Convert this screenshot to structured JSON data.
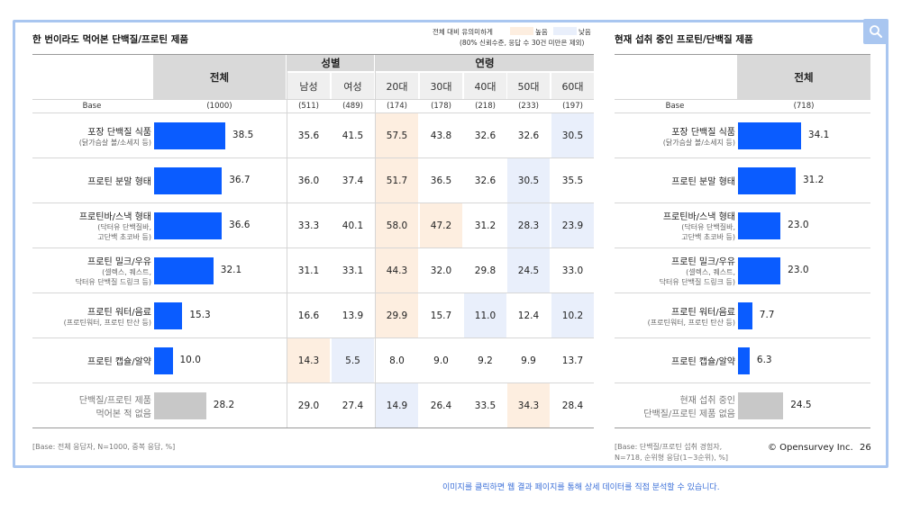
{
  "left_table": {
    "title": "한 번이라도 먹어본 단백질/프로틴 제품",
    "legend": {
      "note_line1": "전체 대비 유의미하게",
      "note_line2": "(80% 신뢰수준, 응답 수 30건 미만은 제외)",
      "high_label": "높음",
      "low_label": "낮음",
      "high_color": "#fdeee0",
      "low_color": "#e9effb"
    },
    "header": {
      "total": "전체",
      "gender_group": "성별",
      "age_group": "연령",
      "columns": [
        "남성",
        "여성",
        "20대",
        "30대",
        "40대",
        "50대",
        "60대"
      ]
    },
    "base_label": "Base",
    "base_values": [
      "(1000)",
      "(511)",
      "(489)",
      "(174)",
      "(178)",
      "(218)",
      "(233)",
      "(197)"
    ],
    "rows": [
      {
        "label": "포장 단백질 식품",
        "sub": [
          "(닭가슴살 볼/소세지 등)"
        ],
        "total": 38.5,
        "total_text": "38.5",
        "values": [
          "35.6",
          "41.5",
          "57.5",
          "43.8",
          "32.6",
          "32.6",
          "30.5"
        ],
        "flags": [
          "",
          "",
          "high",
          "",
          "",
          "",
          "low"
        ]
      },
      {
        "label": "프로틴 분말 형태",
        "sub": [],
        "total": 36.7,
        "total_text": "36.7",
        "values": [
          "36.0",
          "37.4",
          "51.7",
          "36.5",
          "32.6",
          "30.5",
          "35.5"
        ],
        "flags": [
          "",
          "",
          "high",
          "",
          "",
          "low",
          ""
        ]
      },
      {
        "label": "프로틴바/스낵 형태",
        "sub": [
          "(닥터유 단백질바,",
          "고단백 초코바 등)"
        ],
        "total": 36.6,
        "total_text": "36.6",
        "values": [
          "33.3",
          "40.1",
          "58.0",
          "47.2",
          "31.2",
          "28.3",
          "23.9"
        ],
        "flags": [
          "",
          "",
          "high",
          "high",
          "",
          "low",
          "low"
        ]
      },
      {
        "label": "프로틴 밀크/우유",
        "sub": [
          "(셀렉스, 퀘스트,",
          "닥터유 단백질 드링크 등)"
        ],
        "total": 32.1,
        "total_text": "32.1",
        "values": [
          "31.1",
          "33.1",
          "44.3",
          "32.0",
          "29.8",
          "24.5",
          "33.0"
        ],
        "flags": [
          "",
          "",
          "high",
          "",
          "",
          "low",
          ""
        ]
      },
      {
        "label": "프로틴 워터/음료",
        "sub": [
          "(프로틴워터, 프로틴 탄산 등)"
        ],
        "total": 15.3,
        "total_text": "15.3",
        "values": [
          "16.6",
          "13.9",
          "29.9",
          "15.7",
          "11.0",
          "12.4",
          "10.2"
        ],
        "flags": [
          "",
          "",
          "high",
          "",
          "low",
          "",
          "low"
        ]
      },
      {
        "label": "프로틴 캡슐/알약",
        "sub": [],
        "total": 10.0,
        "total_text": "10.0",
        "values": [
          "14.3",
          "5.5",
          "8.0",
          "9.0",
          "9.2",
          "9.9",
          "13.7"
        ],
        "flags": [
          "high",
          "low",
          "",
          "",
          "",
          "",
          ""
        ]
      },
      {
        "label": "단백질/프로틴 제품",
        "sub": [
          "먹어본 적 없음"
        ],
        "total": 28.2,
        "total_text": "28.2",
        "grey": true,
        "values": [
          "29.0",
          "27.4",
          "14.9",
          "26.4",
          "33.5",
          "34.3",
          "28.4"
        ],
        "flags": [
          "",
          "",
          "low",
          "",
          "",
          "high",
          ""
        ]
      }
    ],
    "footnote": "[Base: 전체 응답자, N=1000, 중복 응답, %]"
  },
  "right_table": {
    "title": "현재 섭취 중인 프로틴/단백질 제품",
    "header": {
      "total": "전체"
    },
    "base_label": "Base",
    "base_value": "(718)",
    "rows": [
      {
        "label": "포장 단백질 식품",
        "sub": [
          "(닭가슴살 볼/소세지 등)"
        ],
        "total": 34.1,
        "total_text": "34.1"
      },
      {
        "label": "프로틴 분말 형태",
        "sub": [],
        "total": 31.2,
        "total_text": "31.2"
      },
      {
        "label": "프로틴바/스낵 형태",
        "sub": [
          "(닥터유 단백질바,",
          "고단백 초코바 등)"
        ],
        "total": 23.0,
        "total_text": "23.0"
      },
      {
        "label": "프로틴 밀크/우유",
        "sub": [
          "(셀렉스, 퀘스트,",
          "닥터유 단백질 드링크 등)"
        ],
        "total": 23.0,
        "total_text": "23.0"
      },
      {
        "label": "프로틴 워터/음료",
        "sub": [
          "(프로틴워터, 프로틴 탄산 등)"
        ],
        "total": 7.7,
        "total_text": "7.7"
      },
      {
        "label": "프로틴 캡슐/알약",
        "sub": [],
        "total": 6.3,
        "total_text": "6.3"
      },
      {
        "label": "현재 섭취 중인",
        "sub": [
          "단백질/프로틴 제품 없음"
        ],
        "total": 24.5,
        "total_text": "24.5",
        "grey": true
      }
    ],
    "footnote_line1": "[Base: 단백질/프로틴 섭취 경험자,",
    "footnote_line2": "N=718, 순위형 응답(1~3순위), %]"
  },
  "brand": "© Opensurvey Inc.",
  "page_number": "26",
  "bottom_cta": "이미지를 클릭하면 웹 결과 페이지를 통해 상세 데이터를 직접 분석할 수 있습니다.",
  "colors": {
    "bar_blue": "#0a5cff",
    "bar_grey": "#c8c8c8",
    "frame": "#a9c6f0",
    "cta": "#3b6fd8"
  },
  "icons": {
    "search": "search-icon"
  }
}
